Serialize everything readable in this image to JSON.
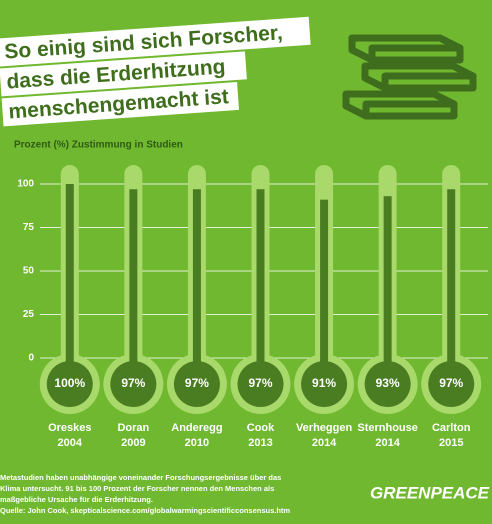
{
  "chart_data": {
    "type": "thermometer",
    "title": [
      "So einig sind sich Forscher,",
      "dass die Erderhitzung",
      "menschengemacht ist"
    ],
    "subtitle": "Prozent (%) Zustimmung in Studien",
    "categories": [
      "Oreskes",
      "Doran",
      "Anderegg",
      "Cook",
      "Verheggen",
      "Sternhouse",
      "Carlton"
    ],
    "years": [
      "2004",
      "2009",
      "2010",
      "2013",
      "2014",
      "2014",
      "2015"
    ],
    "values": [
      100,
      97,
      97,
      97,
      91,
      93,
      97
    ],
    "value_labels": [
      "100%",
      "97%",
      "97%",
      "97%",
      "91%",
      "93%",
      "97%"
    ],
    "color": "#4a7d22",
    "ylim": [
      0,
      100
    ],
    "yticks": [
      0,
      25,
      50,
      75,
      100
    ],
    "grid": true,
    "notes": [
      "Metastudien haben unabhängige voneinander Forschungsergebnisse über das",
      "Klima untersucht. 91 bis 100 Prozent der Forscher nennen den Menschen als",
      "maßgebliche Ursache für die Erderhitzung.",
      "Quelle: John Cook, skepticalscience.com/globalwarmingscientificconsensus.htm"
    ],
    "logo": "GREENPEACE"
  }
}
